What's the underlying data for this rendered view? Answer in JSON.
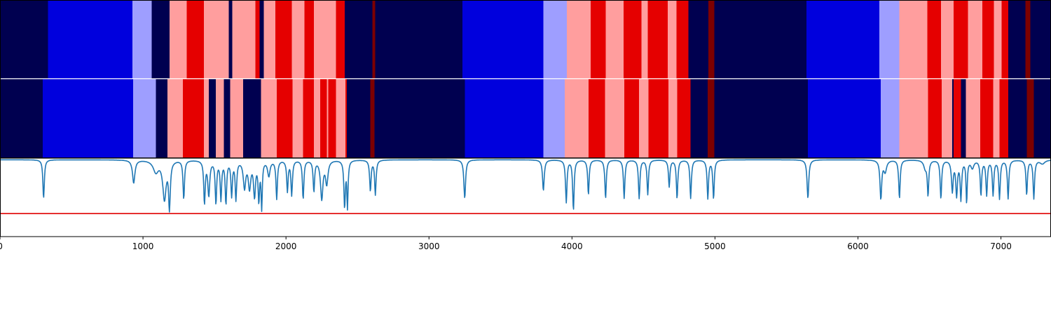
{
  "chart_data": {
    "type": "heatmap",
    "title": "",
    "xlabel": "",
    "ylabel": "",
    "xlim": [
      0,
      7350
    ],
    "xticks": [
      0,
      1000,
      2000,
      3000,
      4000,
      5000,
      6000,
      7000
    ],
    "xtick_labels": [
      "0",
      "1000",
      "2000",
      "3000",
      "4000",
      "5000",
      "6000",
      "7000"
    ],
    "palette": {
      "0": "#000050",
      "1": "#0000dd",
      "2": "#9e9eff",
      "3": "#ff9e9e",
      "4": "#e50000",
      "5": "#7d0000"
    },
    "rows": [
      {
        "name": "",
        "segments": [
          [
            0,
            335,
            0
          ],
          [
            335,
            925,
            1
          ],
          [
            925,
            1060,
            2
          ],
          [
            1060,
            1185,
            0
          ],
          [
            1185,
            1305,
            3
          ],
          [
            1305,
            1425,
            4
          ],
          [
            1425,
            1600,
            3
          ],
          [
            1600,
            1625,
            0
          ],
          [
            1625,
            1785,
            3
          ],
          [
            1785,
            1815,
            4
          ],
          [
            1815,
            1845,
            0
          ],
          [
            1845,
            1925,
            3
          ],
          [
            1925,
            2040,
            4
          ],
          [
            2040,
            2130,
            3
          ],
          [
            2130,
            2195,
            4
          ],
          [
            2195,
            2350,
            3
          ],
          [
            2350,
            2410,
            4
          ],
          [
            2410,
            2605,
            0
          ],
          [
            2605,
            2625,
            5
          ],
          [
            2625,
            3235,
            0
          ],
          [
            3235,
            3800,
            1
          ],
          [
            3800,
            3965,
            2
          ],
          [
            3965,
            4130,
            3
          ],
          [
            4130,
            4235,
            4
          ],
          [
            4235,
            4360,
            3
          ],
          [
            4360,
            4485,
            4
          ],
          [
            4485,
            4530,
            3
          ],
          [
            4530,
            4670,
            4
          ],
          [
            4670,
            4730,
            3
          ],
          [
            4730,
            4815,
            4
          ],
          [
            4815,
            4955,
            0
          ],
          [
            4955,
            4995,
            5
          ],
          [
            4995,
            5640,
            0
          ],
          [
            5640,
            6150,
            1
          ],
          [
            6150,
            6290,
            2
          ],
          [
            6290,
            6485,
            3
          ],
          [
            6485,
            6580,
            4
          ],
          [
            6580,
            6670,
            3
          ],
          [
            6670,
            6770,
            4
          ],
          [
            6770,
            6870,
            3
          ],
          [
            6870,
            6950,
            4
          ],
          [
            6950,
            7005,
            3
          ],
          [
            7005,
            7050,
            4
          ],
          [
            7050,
            7170,
            0
          ],
          [
            7170,
            7205,
            5
          ],
          [
            7205,
            7350,
            0
          ]
        ]
      },
      {
        "name": "",
        "segments": [
          [
            0,
            300,
            0
          ],
          [
            300,
            930,
            1
          ],
          [
            930,
            1090,
            2
          ],
          [
            1090,
            1170,
            0
          ],
          [
            1170,
            1280,
            3
          ],
          [
            1280,
            1425,
            4
          ],
          [
            1425,
            1460,
            3
          ],
          [
            1460,
            1510,
            0
          ],
          [
            1510,
            1565,
            3
          ],
          [
            1565,
            1610,
            0
          ],
          [
            1610,
            1700,
            3
          ],
          [
            1700,
            1825,
            0
          ],
          [
            1825,
            1935,
            3
          ],
          [
            1935,
            2045,
            4
          ],
          [
            2045,
            2120,
            3
          ],
          [
            2120,
            2195,
            4
          ],
          [
            2195,
            2240,
            3
          ],
          [
            2240,
            2285,
            4
          ],
          [
            2285,
            2295,
            3
          ],
          [
            2295,
            2350,
            4
          ],
          [
            2350,
            2415,
            3
          ],
          [
            2415,
            2425,
            4
          ],
          [
            2425,
            2590,
            0
          ],
          [
            2590,
            2620,
            5
          ],
          [
            2620,
            3250,
            0
          ],
          [
            3250,
            3800,
            1
          ],
          [
            3800,
            3950,
            2
          ],
          [
            3950,
            4115,
            3
          ],
          [
            4115,
            4230,
            4
          ],
          [
            4230,
            4365,
            3
          ],
          [
            4365,
            4470,
            4
          ],
          [
            4470,
            4535,
            3
          ],
          [
            4535,
            4675,
            4
          ],
          [
            4675,
            4735,
            3
          ],
          [
            4735,
            4830,
            4
          ],
          [
            4830,
            4950,
            0
          ],
          [
            4950,
            4995,
            5
          ],
          [
            4995,
            5650,
            0
          ],
          [
            5650,
            6160,
            1
          ],
          [
            6160,
            6290,
            2
          ],
          [
            6290,
            6490,
            3
          ],
          [
            6490,
            6585,
            4
          ],
          [
            6585,
            6660,
            3
          ],
          [
            6660,
            6670,
            0
          ],
          [
            6670,
            6720,
            4
          ],
          [
            6720,
            6755,
            0
          ],
          [
            6755,
            6855,
            3
          ],
          [
            6855,
            6945,
            4
          ],
          [
            6945,
            6990,
            3
          ],
          [
            6990,
            7050,
            4
          ],
          [
            7050,
            7180,
            0
          ],
          [
            7180,
            7230,
            5
          ],
          [
            7230,
            7350,
            0
          ]
        ]
      }
    ],
    "line_panel": {
      "ylim": [
        -1.0,
        0.02
      ],
      "threshold": -0.7,
      "threshold_color": "#e00000",
      "series_color": "#1f77b4",
      "baseline": 0,
      "dips": [
        [
          305,
          -0.5,
          6
        ],
        [
          935,
          -0.3,
          10
        ],
        [
          1090,
          -0.15,
          22
        ],
        [
          1150,
          -0.5,
          14
        ],
        [
          1185,
          -0.6,
          7
        ],
        [
          1285,
          -0.5,
          6
        ],
        [
          1430,
          -0.55,
          6
        ],
        [
          1460,
          -0.45,
          8
        ],
        [
          1510,
          -0.55,
          6
        ],
        [
          1545,
          -0.5,
          6
        ],
        [
          1580,
          -0.55,
          6
        ],
        [
          1620,
          -0.45,
          6
        ],
        [
          1650,
          -0.5,
          6
        ],
        [
          1710,
          -0.35,
          10
        ],
        [
          1745,
          -0.35,
          10
        ],
        [
          1780,
          -0.45,
          8
        ],
        [
          1810,
          -0.5,
          6
        ],
        [
          1830,
          -0.6,
          5
        ],
        [
          1880,
          -0.2,
          10
        ],
        [
          1935,
          -0.5,
          6
        ],
        [
          2010,
          -0.4,
          6
        ],
        [
          2040,
          -0.45,
          6
        ],
        [
          2120,
          -0.5,
          6
        ],
        [
          2195,
          -0.4,
          6
        ],
        [
          2250,
          -0.5,
          10
        ],
        [
          2285,
          -0.3,
          10
        ],
        [
          2410,
          -0.6,
          6
        ],
        [
          2430,
          -0.6,
          5
        ],
        [
          2590,
          -0.4,
          6
        ],
        [
          2625,
          -0.45,
          6
        ],
        [
          3250,
          -0.5,
          7
        ],
        [
          3800,
          -0.4,
          7
        ],
        [
          3960,
          -0.55,
          6
        ],
        [
          4010,
          -0.65,
          6
        ],
        [
          4115,
          -0.45,
          6
        ],
        [
          4235,
          -0.5,
          6
        ],
        [
          4365,
          -0.5,
          6
        ],
        [
          4470,
          -0.5,
          6
        ],
        [
          4530,
          -0.45,
          6
        ],
        [
          4680,
          -0.35,
          6
        ],
        [
          4735,
          -0.5,
          6
        ],
        [
          4830,
          -0.5,
          6
        ],
        [
          4950,
          -0.5,
          6
        ],
        [
          4990,
          -0.5,
          6
        ],
        [
          5650,
          -0.5,
          7
        ],
        [
          6160,
          -0.5,
          7
        ],
        [
          6190,
          -0.15,
          12
        ],
        [
          6290,
          -0.5,
          6
        ],
        [
          6470,
          -0.1,
          12
        ],
        [
          6490,
          -0.45,
          6
        ],
        [
          6580,
          -0.5,
          6
        ],
        [
          6660,
          -0.4,
          7
        ],
        [
          6690,
          -0.45,
          7
        ],
        [
          6720,
          -0.5,
          6
        ],
        [
          6760,
          -0.55,
          5
        ],
        [
          6800,
          -0.1,
          12
        ],
        [
          6860,
          -0.45,
          6
        ],
        [
          6900,
          -0.45,
          6
        ],
        [
          6945,
          -0.45,
          6
        ],
        [
          6990,
          -0.5,
          6
        ],
        [
          7050,
          -0.5,
          6
        ],
        [
          7180,
          -0.45,
          6
        ],
        [
          7230,
          -0.5,
          6
        ],
        [
          7290,
          -0.05,
          20
        ]
      ]
    }
  }
}
